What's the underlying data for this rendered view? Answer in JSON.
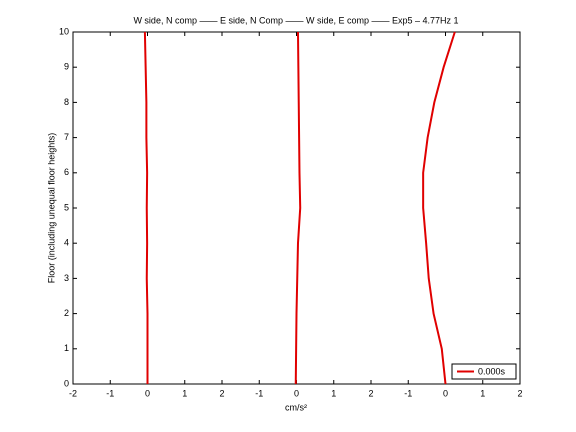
{
  "chart_data": {
    "type": "line",
    "title": "W side, N comp —— E side, N Comp —— W side, E comp —— Exp5 – 4.77Hz 1",
    "xlabel": "cm/s²",
    "ylabel": "Floor (including unequal floor heights)",
    "legend": "0.000s",
    "legend_position": "lower right",
    "y": [
      0,
      1,
      2,
      3,
      4,
      5,
      6,
      7,
      8,
      9,
      10
    ],
    "series": [
      {
        "color": "#e00000",
        "x": [
          2,
          2,
          2,
          1.98,
          1.99,
          1.98,
          1.99,
          1.97,
          1.97,
          1.95,
          1.93
        ]
      },
      {
        "color": "#e00000",
        "x": [
          5.98,
          5.99,
          6.0,
          6.02,
          6.04,
          6.1,
          6.08,
          6.07,
          6.06,
          6.05,
          6.04
        ]
      },
      {
        "color": "#e00000",
        "x": [
          10,
          9.9,
          9.68,
          9.55,
          9.48,
          9.4,
          9.4,
          9.52,
          9.7,
          9.95,
          10.25
        ]
      }
    ],
    "xlim": [
      0,
      12
    ],
    "ylim": [
      0,
      10
    ],
    "xticks": [
      {
        "value": 0,
        "label": "-2"
      },
      {
        "value": 1,
        "label": "-1"
      },
      {
        "value": 2,
        "label": "0"
      },
      {
        "value": 3,
        "label": "1"
      },
      {
        "value": 4,
        "label": "2"
      },
      {
        "value": 5,
        "label": "-1"
      },
      {
        "value": 6,
        "label": "0"
      },
      {
        "value": 7,
        "label": "1"
      },
      {
        "value": 8,
        "label": "2"
      },
      {
        "value": 9,
        "label": "-1"
      },
      {
        "value": 10,
        "label": "0"
      },
      {
        "value": 11,
        "label": "1"
      },
      {
        "value": 12,
        "label": "2"
      }
    ],
    "yticks": [
      0,
      1,
      2,
      3,
      4,
      5,
      6,
      7,
      8,
      9,
      10
    ]
  }
}
